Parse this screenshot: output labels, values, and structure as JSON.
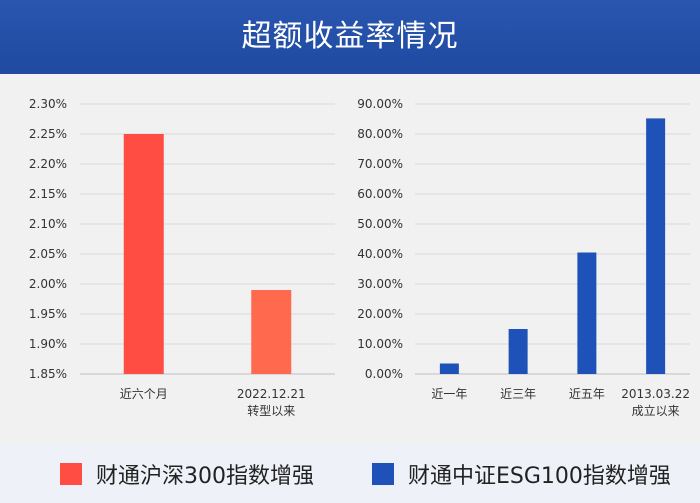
{
  "header": {
    "title": "超额收益率情况"
  },
  "colors": {
    "header_bg": "#1f4aa0",
    "left_series": "#ff4d44",
    "right_series": "#1f52b8"
  },
  "chart_data": [
    {
      "type": "bar",
      "title": "",
      "categories": [
        [
          "近六个月"
        ],
        [
          "2022.12.21",
          "转型以来"
        ]
      ],
      "series": [
        {
          "name": "财通沪深300指数增强",
          "values": [
            2.25,
            1.99
          ]
        }
      ],
      "ylim": [
        1.85,
        2.3
      ],
      "yticks": [
        1.85,
        1.9,
        1.95,
        2.0,
        2.05,
        2.1,
        2.15,
        2.2,
        2.25,
        2.3
      ],
      "ytick_labels": [
        "1.85%",
        "1.90%",
        "1.95%",
        "2.00%",
        "2.05%",
        "2.10%",
        "2.15%",
        "2.20%",
        "2.25%",
        "2.30%"
      ],
      "grid": true,
      "xlabel": "",
      "ylabel": ""
    },
    {
      "type": "bar",
      "title": "",
      "categories": [
        [
          "近一年"
        ],
        [
          "近三年"
        ],
        [
          "近五年"
        ],
        [
          "2013.03.22",
          "成立以来"
        ]
      ],
      "series": [
        {
          "name": "财通中证ESG100指数增强",
          "values": [
            3.5,
            15.0,
            40.5,
            85.2
          ]
        }
      ],
      "ylim": [
        0,
        90
      ],
      "yticks": [
        0,
        10,
        20,
        30,
        40,
        50,
        60,
        70,
        80,
        90
      ],
      "ytick_labels": [
        "0.00%",
        "10.00%",
        "20.00%",
        "30.00%",
        "40.00%",
        "50.00%",
        "60.00%",
        "70.00%",
        "80.00%",
        "90.00%"
      ],
      "grid": true,
      "xlabel": "",
      "ylabel": ""
    }
  ],
  "legend": {
    "items": [
      {
        "label": "财通沪深300指数增强",
        "color": "#ff4d44"
      },
      {
        "label": "财通中证ESG100指数增强",
        "color": "#1f52b8"
      }
    ]
  }
}
